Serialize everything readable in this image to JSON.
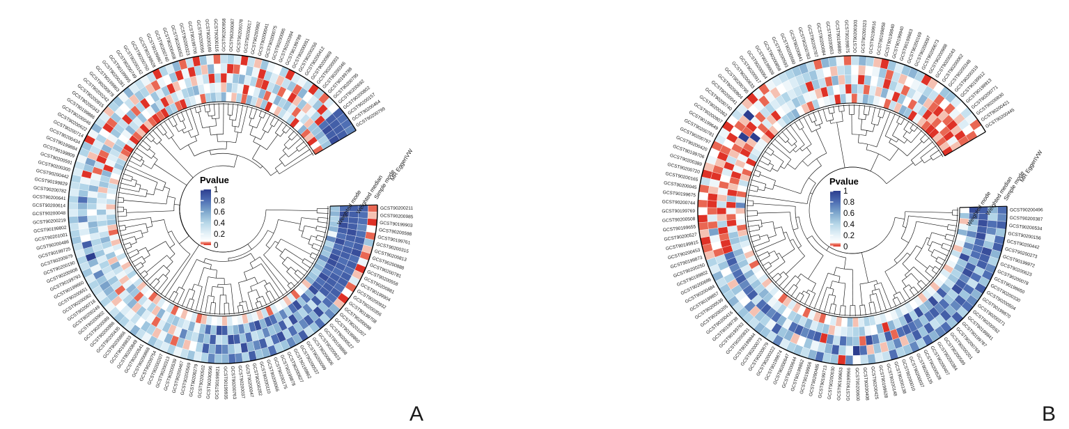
{
  "figure": {
    "background": "#ffffff",
    "panels": [
      {
        "label": "A"
      },
      {
        "label": "B"
      }
    ]
  },
  "legend": {
    "title": "Pvalue",
    "tick_labels": [
      "1",
      "0.8",
      "0.6",
      "0.4",
      "0.2",
      "0"
    ],
    "tick_values": [
      1,
      0.8,
      0.6,
      0.4,
      0.2,
      0
    ],
    "colors": {
      "high_blue": "#2c3e8f",
      "mid_blue": "#7fa8cd",
      "near_zero_white": "#ffffff",
      "zero_red": "#df3227"
    }
  },
  "chart_data": [
    {
      "type": "heatmap",
      "layout": "circular",
      "panel": "A",
      "legend_title": "Pvalue",
      "value_range": [
        0,
        1
      ],
      "rings": [
        "IVW",
        "MR Egger",
        "Simple mode",
        "Weighted median",
        "Weighted mode"
      ],
      "color_scale_stops": [
        [
          0,
          "#df3227"
        ],
        [
          0.07,
          "#e96a55"
        ],
        [
          0.13,
          "#f5beae"
        ],
        [
          0.2,
          "#ffffff"
        ],
        [
          0.33,
          "#ddeef6"
        ],
        [
          0.5,
          "#a8cfe4"
        ],
        [
          0.65,
          "#7fa8cd"
        ],
        [
          0.8,
          "#4f6fb4"
        ],
        [
          1,
          "#2c3e8f"
        ]
      ],
      "sectors": [
        "GCST90200211",
        "GCST90200985",
        "GCST90199903",
        "GCST90200598",
        "GCST90199761",
        "GCST90200315",
        "GCST90200813",
        "GCST90200888",
        "GCST90200781",
        "GCST90200558",
        "GCST90200881",
        "GCST90199904",
        "GCST90200932",
        "GCST90200356",
        "GCST90199708",
        "GCST90200098",
        "GCST90201007",
        "GCST90199860",
        "GCST90200527",
        "GCST90199868",
        "GCST90200823",
        "GCST90200806",
        "GCST90200099",
        "GCST90200537",
        "GCST90199862",
        "GCST90200827",
        "GCST90199878",
        "GCST90200175",
        "GCST90200066",
        "GCST90200110",
        "GCST90200282",
        "GCST90200047",
        "GCST90200037",
        "GCST90200763",
        "GCST90199935",
        "GCST90199821",
        "GCST90200596",
        "GCST90200502",
        "GCST90200279",
        "GCST90200569",
        "GCST90200467",
        "GCST90200539",
        "GCST90200313",
        "GCST90200207",
        "GCST90200754",
        "GCST90200868",
        "GCST90200541",
        "GCST90200849",
        "GCST90199833",
        "GCST90200866",
        "GCST90200435",
        "GCST90200986",
        "GCST90200089",
        "GCST90200902",
        "GCST90200249",
        "GCST90200718",
        "GCST90200082",
        "GCST90200651",
        "GCST90199660",
        "GCST90199793",
        "GCST90200908",
        "GCST90200190",
        "GCST90200979",
        "GCST90199725",
        "GCST90200486",
        "GCST90201001",
        "GCST90199802",
        "GCST90200219",
        "GCST90200048",
        "GCST90200614",
        "GCST90200641",
        "GCST90200782",
        "GCST90199829",
        "GCST90200442",
        "GCST90200300",
        "GCST90200591",
        "GCST90199809",
        "GCST90199884",
        "GCST90200434",
        "GCST90200714",
        "GCST90200622",
        "GCST90200046",
        "GCST90199886",
        "GCST90200343",
        "GCST90200915",
        "GCST90200242",
        "GCST90200978",
        "GCST90199863",
        "GCST90200281",
        "GCST90199995",
        "GCST90200749",
        "GCST90200142",
        "GCST90200750",
        "GCST90199928",
        "GCST90199867",
        "GCST90200740",
        "GCST90200458",
        "GCST90200052",
        "GCST90200323",
        "GCST90199706",
        "GCST90200056",
        "GCST90200169",
        "GCST90200116",
        "GCST90200958",
        "GCST90200087",
        "GCST90200078",
        "GCST90200017",
        "GCST90200992",
        "GCST90200041",
        "GCST90200075",
        "GCST90200095",
        "GCST90200394",
        "GCST90199789",
        "GCST90200051",
        "GCST90200256",
        "GCST90200412",
        "GCST90200969",
        "GCST90200003",
        "GCST90200346",
        "GCST90199788",
        "GCST90200795",
        "GCST90200692",
        "GCST90200802",
        "GCST90200157",
        "GCST90200464",
        "GCST90200799"
      ],
      "values_hex": "1ddc82cde90cdd73bde81ced98ddc42dceb1edc74cdd90dce82cdeb5dcd81ddc93cde70ddc82cdd99c7e2b8d947e6c3c9b818d7e56b9c2d8e749c6b3b7d858e9c17c8d6c6b929d7e48b6c5d9c727e8b4b6d93c8e759b7d28c6e4b9d837d8c557a82836416279548b537146259283648718254647193684259357256841742638591463782425967814359627",
      "values_hex2": "6a845785625b69384726695837f845586726d7948356175842649788b65757384697427c85658463679257458650472681934a60572048861570596247281934706083551740286917406283950461829273158040673914286061508048277306158240903761468560293074518263749058137466502970483518620394768501247398015647092356187284006193583724108669254038177524018463507293608"
    },
    {
      "type": "heatmap",
      "layout": "circular",
      "panel": "B",
      "legend_title": "Pvalue",
      "value_range": [
        0,
        1
      ],
      "rings": [
        "IVW",
        "MR Egger",
        "Simple mode",
        "Weighted median",
        "Weighted mode"
      ],
      "color_scale_stops": [
        [
          0,
          "#df3227"
        ],
        [
          0.07,
          "#e96a55"
        ],
        [
          0.13,
          "#f5beae"
        ],
        [
          0.2,
          "#ffffff"
        ],
        [
          0.33,
          "#ddeef6"
        ],
        [
          0.5,
          "#a8cfe4"
        ],
        [
          0.65,
          "#7fa8cd"
        ],
        [
          0.8,
          "#4f6fb4"
        ],
        [
          1,
          "#2c3e8f"
        ]
      ],
      "sectors": [
        "GCST90200496",
        "GCST90200387",
        "GCST90200534",
        "GCST90200156",
        "GCST90200442",
        "GCST90200273",
        "GCST90199972",
        "GCST90200623",
        "GCST90200078",
        "GCST90199650",
        "GCST90200330",
        "GCST90200504",
        "GCST90199870",
        "GCST90200371",
        "GCST90200592",
        "GCST90199941",
        "GCST90199787",
        "GCST90200769",
        "GCST90200201",
        "GCST90200589",
        "GCST90200384",
        "GCST90200407",
        "GCST90200528",
        "GCST90200135",
        "GCST90200037",
        "GCST90200010",
        "GCST90200138",
        "GCST90200148",
        "GCST90199628",
        "GCST90200425",
        "GCST90200408",
        "GCST90200600",
        "GCST90199966",
        "GCST90199653",
        "GCST90200030",
        "GCST90199713",
        "GCST90200485",
        "GCST90199956",
        "GCST90199862",
        "GCST90200644",
        "GCST90200647",
        "GCST90199674",
        "GCST90200322",
        "GCST90200679",
        "GCST90200073",
        "GCST90199844",
        "GCST90200831",
        "GCST90199763",
        "GCST90199738",
        "GCST90200416",
        "GCST90200205",
        "GCST90200539",
        "GCST90199857",
        "GCST90200484",
        "GCST90200686",
        "GCST90199802",
        "GCST90200250",
        "GCST90199873",
        "GCST90200453",
        "GCST90199915",
        "GCST90200527",
        "GCST90199655",
        "GCST90200508",
        "GCST90199769",
        "GCST90200744",
        "GCST90199675",
        "GCST90200045",
        "GCST90200165",
        "GCST90200720",
        "GCST90200389",
        "GCST90199706",
        "GCST90200420",
        "GCST90200797",
        "GCST90200781",
        "GCST90199649",
        "GCST90200907",
        "GCST90200362",
        "GCST90200740",
        "GCST90200041",
        "GCST90200904",
        "GCST90200795",
        "GCST90200633",
        "GCST90200917",
        "GCST90200064",
        "GCST90199909",
        "GCST90200858",
        "GCST90200593",
        "GCST90200590",
        "GCST90200841",
        "GCST90200783",
        "GCST90200787",
        "GCST90200084",
        "GCST90200853",
        "GCST90199880",
        "GCST90199875",
        "GCST90200303",
        "GCST90200323",
        "GCST90199916",
        "GCST90199858",
        "GCST90199840",
        "GCST90199940",
        "GCST90199663",
        "GCST90200169",
        "GCST90200097",
        "GCST90200673",
        "GCST90200988",
        "GCST90200243",
        "GCST90200062",
        "GCST90200348",
        "GCST90200319",
        "GCST90199912",
        "GCST90199913",
        "GCST90200771",
        "GCST90200830",
        "GCST90200421",
        "GCST90200445"
      ],
      "values_hex": "c9de3b7dc8dce928bd74c6eb9d8c739ecb47dc82bd9e6c7d838ce94d6b729cd85b8e63cd7947b8d2d9c648dbe5c7d92b6c849d8e3c8b757dce4b9d8682c647b193c8d056279458b3692e476c1853f872b496807c538d64279b25c608394d7168c5283b9472d6159c83b84726d93584c7297b5168d4372c858b69463d7294c8578b6382d9467c5193b8458d7276c93",
      "values_hex2": "2106513087041822a0511170405213310421 60b30285124016412300316215024204130623112405310640215 3f24311f4620325f4102315204623417051453742648537596458375672867419704768823156049317582930462581770463481920657381924357086248109356741825069318274639054182795036274811028302151210341306201245201130423112053"
    }
  ]
}
